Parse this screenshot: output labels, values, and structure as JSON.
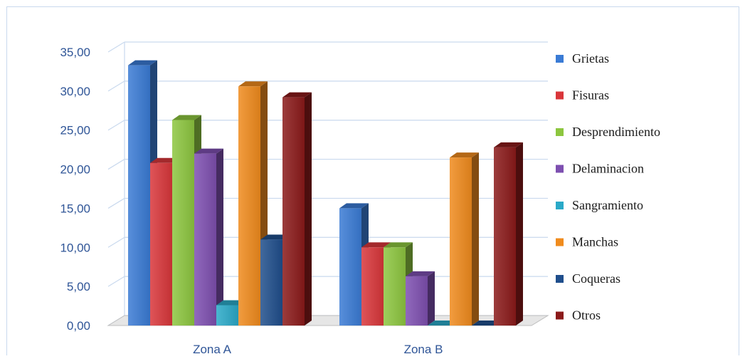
{
  "chart_data": {
    "type": "bar",
    "style": "3d-clustered-column",
    "categories": [
      "Zona A",
      "Zona B"
    ],
    "series": [
      {
        "name": "Grietas",
        "values": [
          33.3,
          15.0
        ],
        "color": "#3a7bd5"
      },
      {
        "name": "Fisuras",
        "values": [
          20.8,
          10.0
        ],
        "color": "#d9363a"
      },
      {
        "name": "Desprendimiento",
        "values": [
          26.3,
          10.0
        ],
        "color": "#8dc63f"
      },
      {
        "name": "Delaminacion",
        "values": [
          22.0,
          6.3
        ],
        "color": "#7d4fb0"
      },
      {
        "name": "Sangramiento",
        "values": [
          2.6,
          0.0
        ],
        "color": "#2aa9c8"
      },
      {
        "name": "Manchas",
        "values": [
          30.6,
          21.5
        ],
        "color": "#f08b1d"
      },
      {
        "name": "Coqueras",
        "values": [
          11.0,
          0.0
        ],
        "color": "#1f4e8c"
      },
      {
        "name": "Otros",
        "values": [
          29.2,
          22.8
        ],
        "color": "#8b1a1a"
      }
    ],
    "yticks": [
      "0,00",
      "5,00",
      "10,00",
      "15,00",
      "20,00",
      "25,00",
      "30,00",
      "35,00"
    ],
    "ylim": [
      0,
      35
    ],
    "grid": true,
    "legend_position": "right"
  }
}
